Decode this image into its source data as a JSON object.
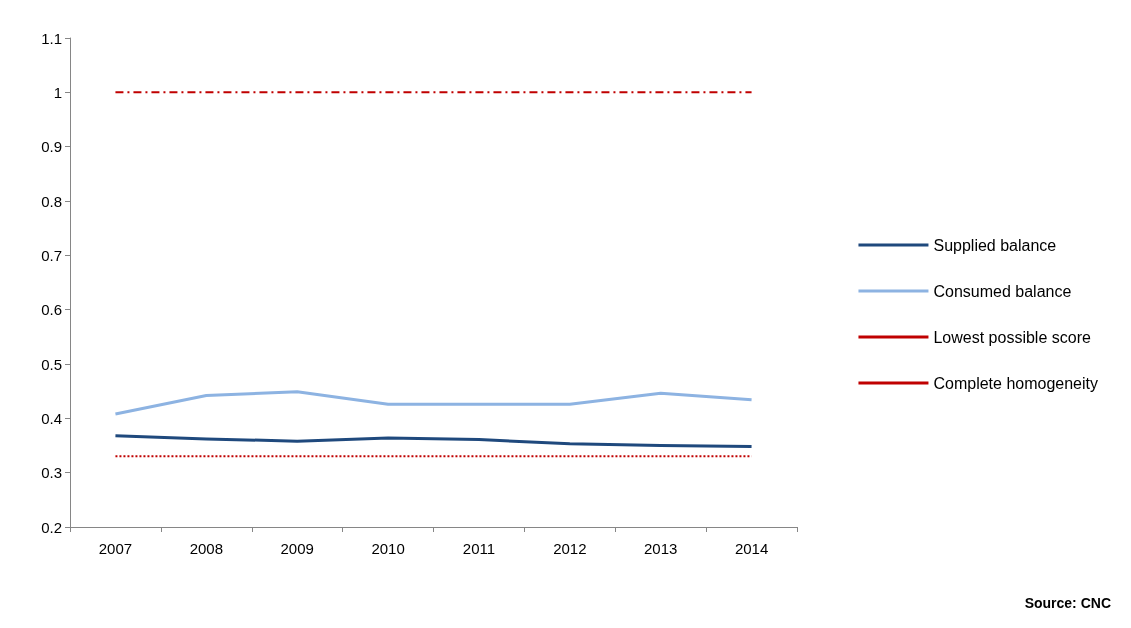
{
  "chart_data": {
    "type": "line",
    "categories": [
      "2007",
      "2008",
      "2009",
      "2010",
      "2011",
      "2012",
      "2013",
      "2014"
    ],
    "series": [
      {
        "name": "Supplied balance",
        "color": "#1f497d",
        "values": [
          0.368,
          0.362,
          0.358,
          0.364,
          0.361,
          0.353,
          0.35,
          0.348
        ]
      },
      {
        "name": "Consumed balance",
        "color": "#8db3e2",
        "values": [
          0.408,
          0.442,
          0.449,
          0.426,
          0.426,
          0.426,
          0.446,
          0.434
        ]
      },
      {
        "name": "Lowest possible score",
        "color": "#c00000",
        "line_style": "dotted",
        "values": [
          0.33,
          0.33,
          0.33,
          0.33,
          0.33,
          0.33,
          0.33,
          0.33
        ]
      },
      {
        "name": "Complete homogeneity",
        "color": "#c00000",
        "line_style": "dashdot",
        "values": [
          1,
          1,
          1,
          1,
          1,
          1,
          1,
          1
        ]
      }
    ],
    "ylim": [
      0.2,
      1.1
    ],
    "yticks": [
      0.2,
      0.3,
      0.4,
      0.5,
      0.6,
      0.7,
      0.8,
      0.9,
      1,
      1.1
    ],
    "grid": false,
    "legend": "right",
    "marker": "none",
    "line_style": "solid",
    "annotations": [
      "Source: CNC"
    ]
  }
}
